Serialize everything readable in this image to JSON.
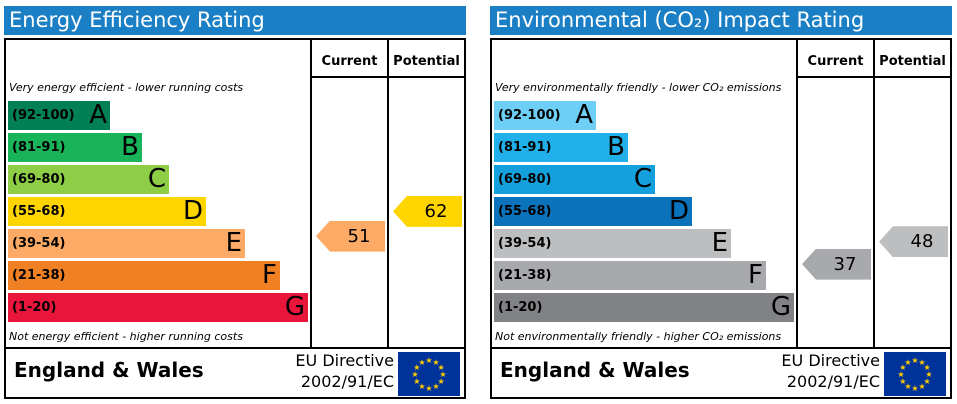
{
  "chart_data": [
    {
      "type": "bar",
      "title": "Energy Efficiency Rating",
      "columns": [
        "Current",
        "Potential"
      ],
      "top_note": "Very energy efficient - lower running costs",
      "bottom_note": "Not energy efficient - higher running costs",
      "bands": [
        {
          "range": "(92-100)",
          "letter": "A",
          "color": "#008054",
          "text_color": "#000000"
        },
        {
          "range": "(81-91)",
          "letter": "B",
          "color": "#19b459",
          "text_color": "#000000"
        },
        {
          "range": "(69-80)",
          "letter": "C",
          "color": "#8dce46",
          "text_color": "#000000"
        },
        {
          "range": "(55-68)",
          "letter": "D",
          "color": "#ffd500",
          "text_color": "#000000"
        },
        {
          "range": "(39-54)",
          "letter": "E",
          "color": "#fcaa65",
          "text_color": "#000000"
        },
        {
          "range": "(21-38)",
          "letter": "F",
          "color": "#ef8023",
          "text_color": "#000000"
        },
        {
          "range": "(1-20)",
          "letter": "G",
          "color": "#e9153b",
          "text_color": "#000000"
        }
      ],
      "current": {
        "value": 51,
        "color": "#fcaa65"
      },
      "potential": {
        "value": 62,
        "color": "#ffd500"
      },
      "footer": {
        "country": "England & Wales",
        "directive_line1": "EU Directive",
        "directive_line2": "2002/91/EC"
      }
    },
    {
      "type": "bar",
      "title": "Environmental (CO₂) Impact Rating",
      "columns": [
        "Current",
        "Potential"
      ],
      "top_note": "Very environmentally friendly - lower CO₂ emissions",
      "bottom_note": "Not environmentally friendly - higher CO₂ emissions",
      "bands": [
        {
          "range": "(92-100)",
          "letter": "A",
          "color": "#6ecff6",
          "text_color": "#000000"
        },
        {
          "range": "(81-91)",
          "letter": "B",
          "color": "#21b0e9",
          "text_color": "#000000"
        },
        {
          "range": "(69-80)",
          "letter": "C",
          "color": "#14a0dc",
          "text_color": "#000000"
        },
        {
          "range": "(55-68)",
          "letter": "D",
          "color": "#0b72bc",
          "text_color": "#000000"
        },
        {
          "range": "(39-54)",
          "letter": "E",
          "color": "#bcbec0",
          "text_color": "#000000"
        },
        {
          "range": "(21-38)",
          "letter": "F",
          "color": "#a7a9ac",
          "text_color": "#000000"
        },
        {
          "range": "(1-20)",
          "letter": "G",
          "color": "#808285",
          "text_color": "#000000"
        }
      ],
      "current": {
        "value": 37,
        "color": "#a7a9ac"
      },
      "potential": {
        "value": 48,
        "color": "#bcbec0"
      },
      "footer": {
        "country": "England & Wales",
        "directive_line1": "EU Directive",
        "directive_line2": "2002/91/EC"
      }
    }
  ]
}
